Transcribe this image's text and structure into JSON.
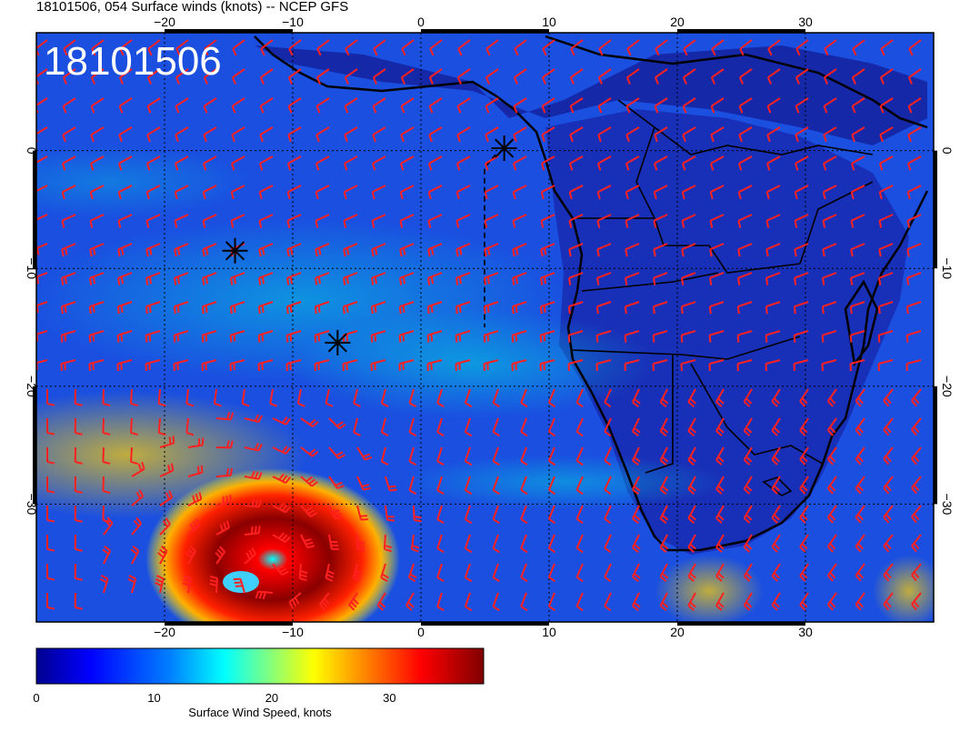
{
  "title": "18101506, 054 Surface winds (knots) -- NCEP GFS",
  "timestamp_overlay": "18101506",
  "map": {
    "lon_range": [
      -30,
      40
    ],
    "lat_range": [
      -40,
      10
    ],
    "lon_ticks": [
      -20,
      -10,
      0,
      10,
      20,
      30
    ],
    "lon_tick_labels": [
      "−20",
      "−10",
      "0",
      "10",
      "20",
      "30"
    ],
    "lat_ticks": [
      0,
      -10,
      -20,
      -30
    ],
    "lat_tick_labels": [
      "0",
      "−10",
      "−20",
      "−30"
    ],
    "grid": true,
    "coastlines": true,
    "wind_barb_color": "#ff2020",
    "markers": [
      {
        "name": "asterisk",
        "lon": 6.5,
        "lat": 0.2
      },
      {
        "name": "asterisk",
        "lon": -14.5,
        "lat": -8.5
      },
      {
        "name": "asterisk",
        "lon": -6.5,
        "lat": -16.3
      }
    ],
    "features": {
      "cyclone_center": {
        "lon": -12,
        "lat": -36
      },
      "wind_speed_field_max_knots": 38
    }
  },
  "colorbar": {
    "label": "Surface Wind Speed, knots",
    "range": [
      0,
      38
    ],
    "ticks": [
      0,
      10,
      20,
      30
    ],
    "tick_labels": [
      "0",
      "10",
      "20",
      "30"
    ],
    "colors": [
      "#00008f",
      "#0000ff",
      "#0080ff",
      "#00ffff",
      "#80ff80",
      "#ffff00",
      "#ff8000",
      "#ff0000",
      "#800000"
    ]
  }
}
